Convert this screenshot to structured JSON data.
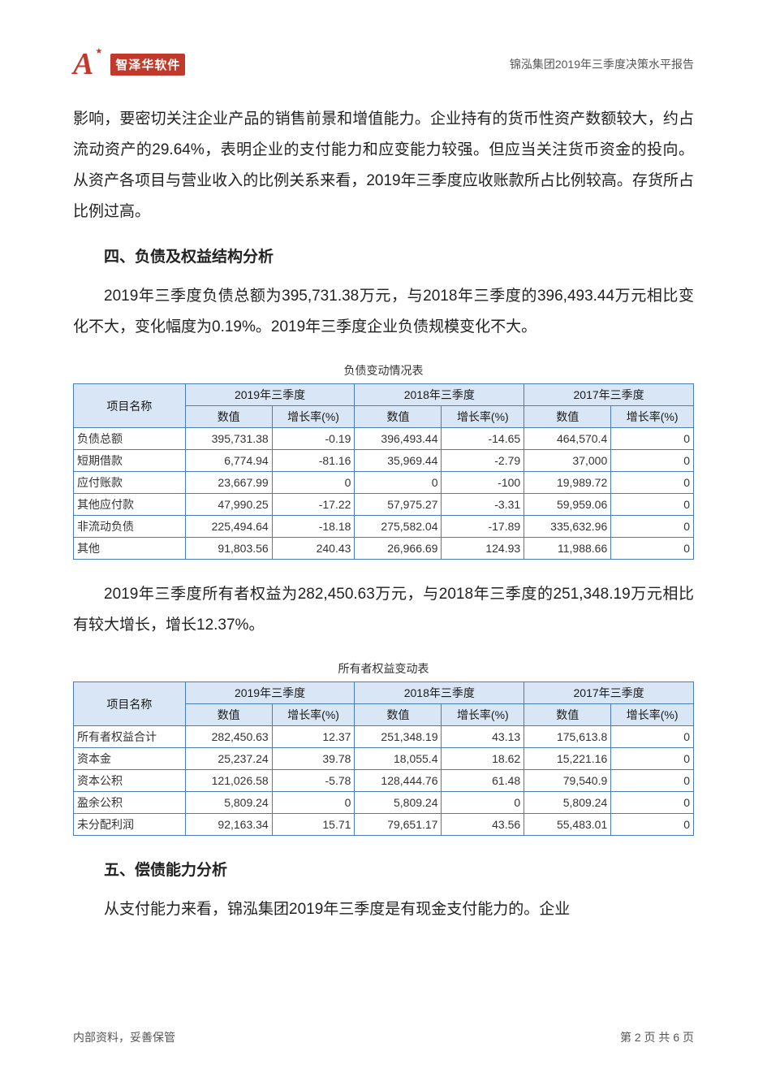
{
  "header": {
    "logo_letter": "A",
    "logo_star": "★",
    "logo_text": "智泽华软件",
    "doc_title": "锦泓集团2019年三季度决策水平报告"
  },
  "paragraphs": {
    "p1": "影响，要密切关注企业产品的销售前景和增值能力。企业持有的货币性资产数额较大，约占流动资产的29.64%，表明企业的支付能力和应变能力较强。但应当关注货币资金的投向。从资产各项目与营业收入的比例关系来看，2019年三季度应收账款所占比例较高。存货所占比例过高。",
    "h4": "四、负债及权益结构分析",
    "p2": "2019年三季度负债总额为395,731.38万元，与2018年三季度的396,493.44万元相比变化不大，变化幅度为0.19%。2019年三季度企业负债规模变化不大。",
    "p3": "2019年三季度所有者权益为282,450.63万元，与2018年三季度的251,348.19万元相比有较大增长，增长12.37%。",
    "h5": "五、偿债能力分析",
    "p4": "从支付能力来看，锦泓集团2019年三季度是有现金支付能力的。企业"
  },
  "table1": {
    "caption": "负债变动情况表",
    "col_item": "项目名称",
    "periods": [
      "2019年三季度",
      "2018年三季度",
      "2017年三季度"
    ],
    "sub_val": "数值",
    "sub_rate": "增长率(%)",
    "rows": [
      {
        "name": "负债总额",
        "v1": "395,731.38",
        "r1": "-0.19",
        "v2": "396,493.44",
        "r2": "-14.65",
        "v3": "464,570.4",
        "r3": "0"
      },
      {
        "name": "短期借款",
        "v1": "6,774.94",
        "r1": "-81.16",
        "v2": "35,969.44",
        "r2": "-2.79",
        "v3": "37,000",
        "r3": "0"
      },
      {
        "name": "应付账款",
        "v1": "23,667.99",
        "r1": "0",
        "v2": "0",
        "r2": "-100",
        "v3": "19,989.72",
        "r3": "0"
      },
      {
        "name": "其他应付款",
        "v1": "47,990.25",
        "r1": "-17.22",
        "v2": "57,975.27",
        "r2": "-3.31",
        "v3": "59,959.06",
        "r3": "0"
      },
      {
        "name": "非流动负债",
        "v1": "225,494.64",
        "r1": "-18.18",
        "v2": "275,582.04",
        "r2": "-17.89",
        "v3": "335,632.96",
        "r3": "0"
      },
      {
        "name": "其他",
        "v1": "91,803.56",
        "r1": "240.43",
        "v2": "26,966.69",
        "r2": "124.93",
        "v3": "11,988.66",
        "r3": "0"
      }
    ]
  },
  "table2": {
    "caption": "所有者权益变动表",
    "col_item": "项目名称",
    "periods": [
      "2019年三季度",
      "2018年三季度",
      "2017年三季度"
    ],
    "sub_val": "数值",
    "sub_rate": "增长率(%)",
    "rows": [
      {
        "name": "所有者权益合计",
        "v1": "282,450.63",
        "r1": "12.37",
        "v2": "251,348.19",
        "r2": "43.13",
        "v3": "175,613.8",
        "r3": "0"
      },
      {
        "name": "资本金",
        "v1": "25,237.24",
        "r1": "39.78",
        "v2": "18,055.4",
        "r2": "18.62",
        "v3": "15,221.16",
        "r3": "0"
      },
      {
        "name": "资本公积",
        "v1": "121,026.58",
        "r1": "-5.78",
        "v2": "128,444.76",
        "r2": "61.48",
        "v3": "79,540.9",
        "r3": "0"
      },
      {
        "name": "盈余公积",
        "v1": "5,809.24",
        "r1": "0",
        "v2": "5,809.24",
        "r2": "0",
        "v3": "5,809.24",
        "r3": "0"
      },
      {
        "name": "未分配利润",
        "v1": "92,163.34",
        "r1": "15.71",
        "v2": "79,651.17",
        "r2": "43.56",
        "v3": "55,483.01",
        "r3": "0"
      }
    ]
  },
  "footer": {
    "left": "内部资料，妥善保管",
    "right": "第 2 页   共 6 页"
  },
  "style": {
    "header_bg": "#d9e6f5",
    "border_color": "#4a7db5",
    "logo_color": "#c0392b",
    "body_font_size": 19,
    "table_font_size": 14
  }
}
